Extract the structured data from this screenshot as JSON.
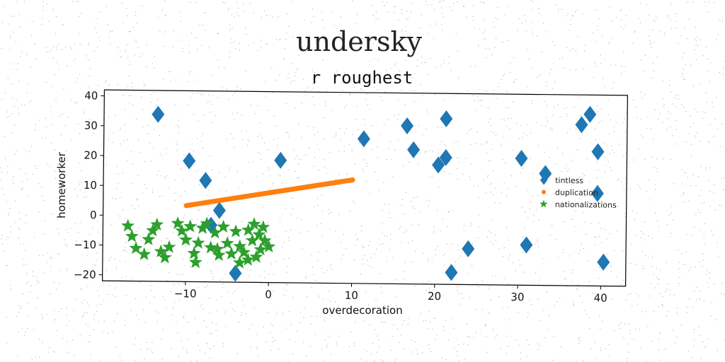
{
  "chart_data": {
    "type": "scatter",
    "title": "undersky",
    "subtitle": "r roughest",
    "xlabel": "overdecoration",
    "ylabel": "homeworker",
    "xlim": [
      -20,
      43
    ],
    "ylim": [
      -22,
      42
    ],
    "xticks": [
      -10,
      0,
      10,
      20,
      30,
      40
    ],
    "yticks": [
      -20,
      -10,
      0,
      10,
      20,
      30,
      40
    ],
    "legend": {
      "placement": "center-right"
    },
    "series": [
      {
        "name": "tintless",
        "marker": "diamond",
        "color": "#1f77b4",
        "points": [
          [
            -13.5,
            34
          ],
          [
            -9.7,
            18.5
          ],
          [
            -7.7,
            12
          ],
          [
            -6,
            2
          ],
          [
            -7,
            -3
          ],
          [
            1.3,
            19
          ],
          [
            11.3,
            26.5
          ],
          [
            16.5,
            31
          ],
          [
            17.3,
            23
          ],
          [
            20.3,
            18
          ],
          [
            21.2,
            20.5
          ],
          [
            21.2,
            33.5
          ],
          [
            22,
            -18
          ],
          [
            24,
            -10
          ],
          [
            30.3,
            20.5
          ],
          [
            31,
            -8.5
          ],
          [
            33.2,
            15.5
          ],
          [
            37.5,
            32
          ],
          [
            38.5,
            35.5
          ],
          [
            39.5,
            23
          ],
          [
            39.5,
            9
          ],
          [
            40.3,
            -14
          ],
          [
            -4,
            -19
          ]
        ]
      },
      {
        "name": "duplication",
        "marker": "line",
        "color": "#ff7f0e",
        "points": [
          [
            -10,
            3.5
          ],
          [
            10,
            12.7
          ]
        ]
      },
      {
        "name": "nationalizations",
        "marker": "star",
        "color": "#2ca02c",
        "points": [
          [
            -17,
            -3.5
          ],
          [
            -16.5,
            -7
          ],
          [
            -16,
            -11
          ],
          [
            -15,
            -13
          ],
          [
            -14.5,
            -8
          ],
          [
            -14,
            -5
          ],
          [
            -13.5,
            -3
          ],
          [
            -13,
            -12
          ],
          [
            -12.5,
            -14
          ],
          [
            -12,
            -10.5
          ],
          [
            -11,
            -2.5
          ],
          [
            -10.5,
            -5
          ],
          [
            -10,
            -8
          ],
          [
            -9.5,
            -3.5
          ],
          [
            -9,
            -12.5
          ],
          [
            -8.8,
            -15.5
          ],
          [
            -8.5,
            -9
          ],
          [
            -8,
            -4
          ],
          [
            -7.5,
            -2.5
          ],
          [
            -7,
            -10.5
          ],
          [
            -6.5,
            -5.5
          ],
          [
            -6.2,
            -11
          ],
          [
            -6,
            -13
          ],
          [
            -5.5,
            -3.5
          ],
          [
            -5,
            -9
          ],
          [
            -4.5,
            -12.5
          ],
          [
            -4,
            -5
          ],
          [
            -3.5,
            -15.5
          ],
          [
            -3.5,
            -10
          ],
          [
            -3,
            -12
          ],
          [
            -2.5,
            -4.5
          ],
          [
            -2.5,
            -14.5
          ],
          [
            -2,
            -8
          ],
          [
            -1.5,
            -13.5
          ],
          [
            -1.2,
            -6
          ],
          [
            -1,
            -11
          ],
          [
            -0.7,
            -3.5
          ],
          [
            -0.5,
            -8
          ],
          [
            0,
            -10
          ],
          [
            -1.8,
            -2.5
          ]
        ]
      }
    ]
  }
}
